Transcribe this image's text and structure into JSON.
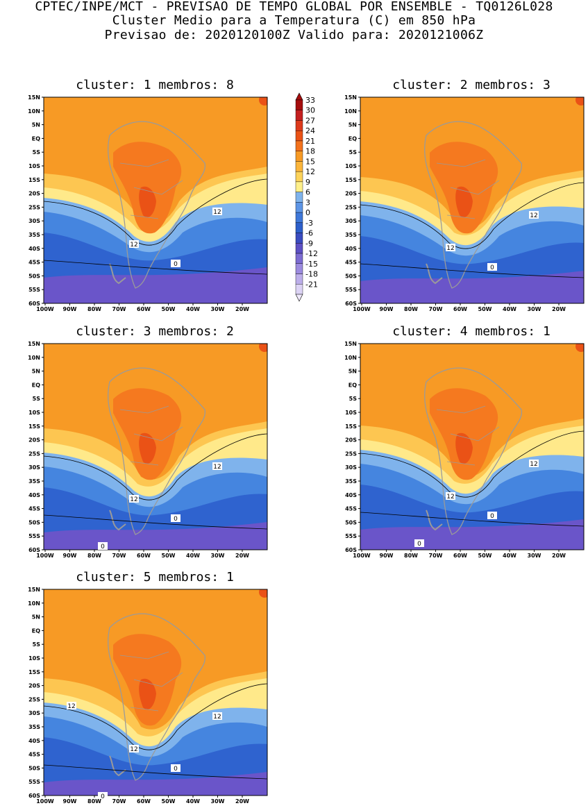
{
  "header": {
    "line1": "CPTEC/INPE/MCT - PREVISAO DE TEMPO GLOBAL POR ENSEMBLE - TQ0126L028",
    "line2": "Cluster Medio para a Temperatura (C) em 850 hPa",
    "line3": "Previsao de: 2020120100Z   Valido para: 2020121006Z"
  },
  "axes": {
    "lat_labels": [
      "15N",
      "10N",
      "5N",
      "EQ",
      "5S",
      "10S",
      "15S",
      "20S",
      "25S",
      "30S",
      "35S",
      "40S",
      "45S",
      "50S",
      "55S",
      "60S"
    ],
    "lon_labels": [
      "100W",
      "90W",
      "80W",
      "70W",
      "60W",
      "50W",
      "40W",
      "30W",
      "20W"
    ]
  },
  "colorbar": {
    "labels": [
      "33",
      "30",
      "27",
      "24",
      "21",
      "18",
      "15",
      "12",
      "9",
      "6",
      "3",
      "0",
      "-3",
      "-6",
      "-9",
      "-12",
      "-15",
      "-18",
      "-21"
    ],
    "colors": [
      "#a50d0d",
      "#c42020",
      "#dd3a1c",
      "#ea5216",
      "#f3721d",
      "#f79a25",
      "#fbb53b",
      "#fdd35a",
      "#fff08a",
      "#7fb3ec",
      "#5d95e6",
      "#3f78d9",
      "#2d5fcb",
      "#3a4cc0",
      "#5d50c4",
      "#7d6cd2",
      "#9c8bdf",
      "#bcaeea",
      "#dcd3f5"
    ]
  },
  "panels": [
    {
      "title": "cluster: 1   membros: 8",
      "labels": {
        "c12a": "12",
        "c12b": "12",
        "c0": "0"
      }
    },
    {
      "title": "cluster: 2   membros: 3",
      "labels": {
        "c12a": "12",
        "c12b": "12",
        "c0": "0"
      }
    },
    {
      "title": "cluster: 3   membros: 2",
      "labels": {
        "c12a": "12",
        "c12b": "12",
        "c0": "0",
        "c0b": "0"
      }
    },
    {
      "title": "cluster: 4   membros: 1",
      "labels": {
        "c12a": "12",
        "c12b": "12",
        "c0": "0",
        "c0b": "0"
      }
    },
    {
      "title": "cluster: 5   membros: 1",
      "labels": {
        "c12a": "12",
        "c12b": "12",
        "c12c": "12",
        "c0": "0",
        "c0b": "0"
      }
    }
  ]
}
